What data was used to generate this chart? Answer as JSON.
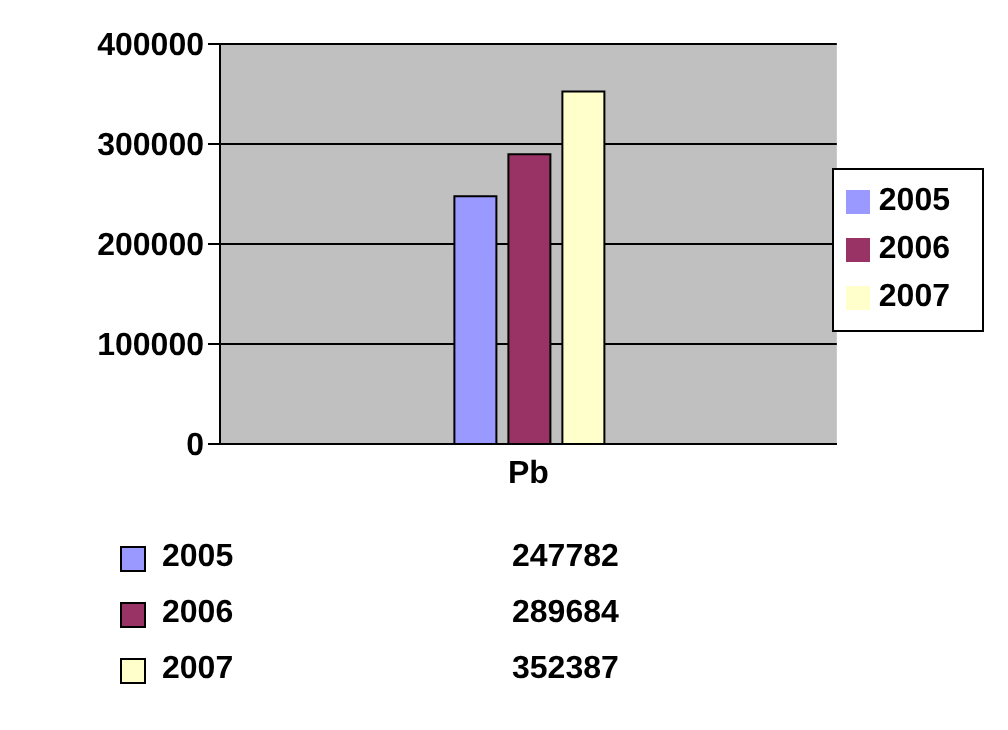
{
  "chart_data": {
    "type": "bar",
    "categories": [
      "Pb"
    ],
    "series": [
      {
        "name": "2005",
        "color": "#9999ff",
        "values": [
          247782
        ]
      },
      {
        "name": "2006",
        "color": "#993366",
        "values": [
          289684
        ]
      },
      {
        "name": "2007",
        "color": "#ffffcc",
        "values": [
          352387
        ]
      }
    ],
    "ylim": [
      0,
      400000
    ],
    "yticks": [
      0,
      100000,
      200000,
      300000,
      400000
    ],
    "grid": "y",
    "legend": "right",
    "annotations": [
      "247782",
      "289684",
      "352387"
    ]
  }
}
